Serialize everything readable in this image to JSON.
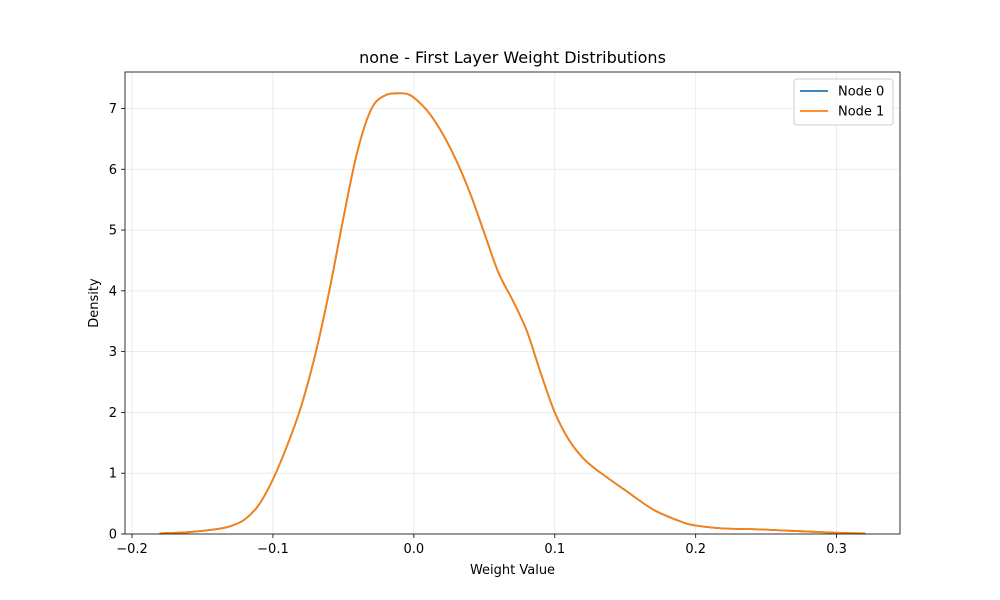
{
  "chart_data": {
    "type": "line",
    "title": "none - First Layer Weight Distributions",
    "xlabel": "Weight Value",
    "ylabel": "Density",
    "xlim": [
      -0.205,
      0.345
    ],
    "ylim": [
      0,
      7.6
    ],
    "xticks": [
      -0.2,
      -0.1,
      0.0,
      0.1,
      0.2,
      0.3
    ],
    "xtick_labels": [
      "−0.2",
      "−0.1",
      "0.0",
      "0.1",
      "0.2",
      "0.3"
    ],
    "yticks": [
      0,
      1,
      2,
      3,
      4,
      5,
      6,
      7
    ],
    "ytick_labels": [
      "0",
      "1",
      "2",
      "3",
      "4",
      "5",
      "6",
      "7"
    ],
    "grid": true,
    "legend_position": "upper-right",
    "series": [
      {
        "name": "Node 0",
        "color": "#1f77b4",
        "x": [
          -0.18,
          -0.16,
          -0.14,
          -0.13,
          -0.12,
          -0.11,
          -0.1,
          -0.09,
          -0.08,
          -0.07,
          -0.06,
          -0.05,
          -0.04,
          -0.03,
          -0.02,
          -0.01,
          -0.005,
          0.0,
          0.01,
          0.02,
          0.03,
          0.04,
          0.05,
          0.06,
          0.07,
          0.08,
          0.09,
          0.1,
          0.11,
          0.12,
          0.13,
          0.15,
          0.17,
          0.19,
          0.2,
          0.22,
          0.24,
          0.26,
          0.28,
          0.3,
          0.32
        ],
        "y": [
          0.01,
          0.03,
          0.08,
          0.13,
          0.24,
          0.48,
          0.9,
          1.45,
          2.1,
          2.95,
          4.0,
          5.2,
          6.3,
          7.0,
          7.22,
          7.25,
          7.24,
          7.18,
          6.95,
          6.6,
          6.15,
          5.6,
          4.95,
          4.3,
          3.85,
          3.35,
          2.65,
          2.0,
          1.55,
          1.25,
          1.05,
          0.72,
          0.4,
          0.2,
          0.14,
          0.09,
          0.08,
          0.06,
          0.04,
          0.02,
          0.01
        ]
      },
      {
        "name": "Node 1",
        "color": "#ff7f0e",
        "x": [
          -0.18,
          -0.16,
          -0.14,
          -0.13,
          -0.12,
          -0.11,
          -0.1,
          -0.09,
          -0.08,
          -0.07,
          -0.06,
          -0.05,
          -0.04,
          -0.03,
          -0.02,
          -0.01,
          -0.005,
          0.0,
          0.01,
          0.02,
          0.03,
          0.04,
          0.05,
          0.06,
          0.07,
          0.08,
          0.09,
          0.1,
          0.11,
          0.12,
          0.13,
          0.15,
          0.17,
          0.19,
          0.2,
          0.22,
          0.24,
          0.26,
          0.28,
          0.3,
          0.32
        ],
        "y": [
          0.01,
          0.03,
          0.08,
          0.13,
          0.24,
          0.48,
          0.9,
          1.45,
          2.1,
          2.95,
          4.0,
          5.2,
          6.3,
          7.0,
          7.22,
          7.25,
          7.24,
          7.18,
          6.95,
          6.6,
          6.15,
          5.6,
          4.95,
          4.3,
          3.85,
          3.35,
          2.65,
          2.0,
          1.55,
          1.25,
          1.05,
          0.72,
          0.4,
          0.2,
          0.14,
          0.09,
          0.08,
          0.06,
          0.04,
          0.02,
          0.01
        ]
      }
    ]
  }
}
